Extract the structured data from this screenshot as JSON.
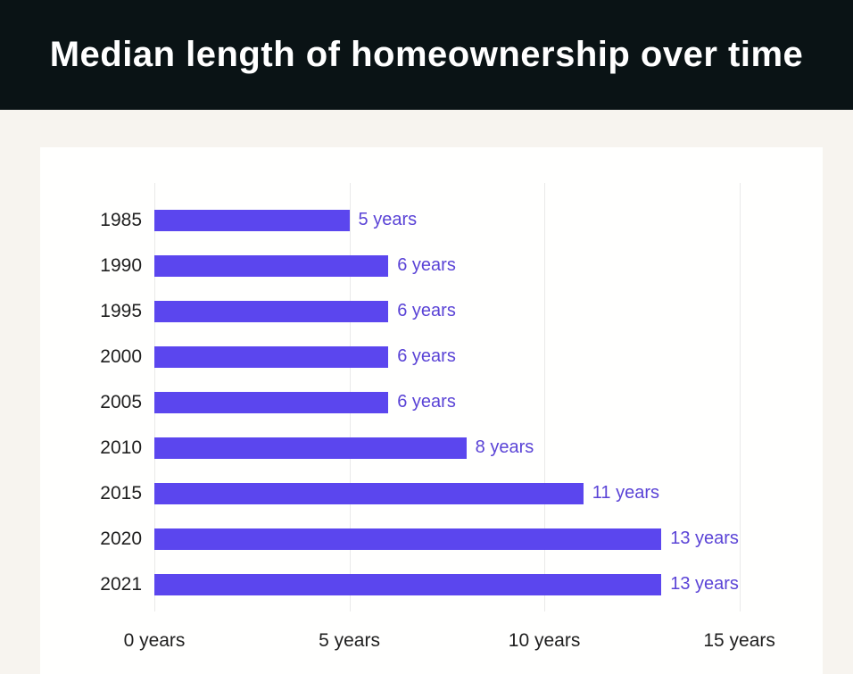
{
  "banner": {
    "title": "Median length of homeownership over time"
  },
  "colors": {
    "page-bg": "#f7f4ef",
    "banner-bg": "#0a1315",
    "card-bg": "#fffffe",
    "bar": "#5b46ee",
    "value-label": "#5a43d6",
    "axis-text": "#1f1f1f",
    "gridline": "#e9e9e9"
  },
  "chart_data": {
    "type": "bar",
    "orientation": "horizontal",
    "title": "Median length of homeownership over time",
    "categories": [
      "1985",
      "1990",
      "1995",
      "2000",
      "2005",
      "2010",
      "2015",
      "2020",
      "2021"
    ],
    "values": [
      5,
      6,
      6,
      6,
      6,
      8,
      11,
      13,
      13
    ],
    "value_labels": [
      "5 years",
      "6 years",
      "6 years",
      "6 years",
      "6 years",
      "8 years",
      "11 years",
      "13 years",
      "13 years"
    ],
    "xlabel": "",
    "ylabel": "",
    "xlim": [
      0,
      15.1
    ],
    "xticks": [
      {
        "value": 0,
        "label": "0 years"
      },
      {
        "value": 5,
        "label": "5 years"
      },
      {
        "value": 10,
        "label": "10 years"
      },
      {
        "value": 15,
        "label": "15 years"
      }
    ],
    "grid": "vertical-gridlines",
    "legend": "none",
    "bar_color": "#5b46ee"
  }
}
